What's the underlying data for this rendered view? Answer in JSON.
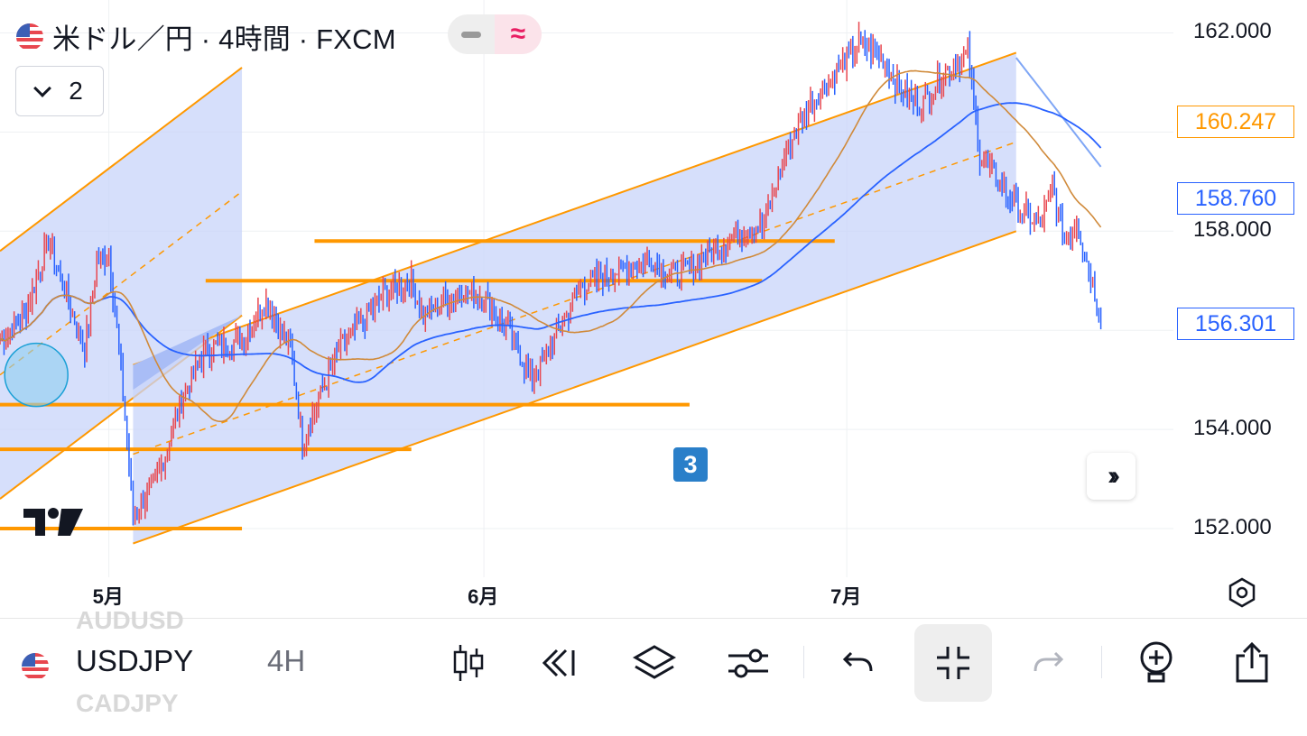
{
  "header": {
    "title": "米ドル／円 · 4時間 · FXCM",
    "collapse_count": "2"
  },
  "badge_label": "3",
  "price_labels": {
    "orange": "160.247",
    "blue_ma": "158.760",
    "last": "156.301"
  },
  "colors": {
    "bull": "#e8474f",
    "bear": "#2962ff",
    "channel_fill": "#c8d4fa",
    "channel_line": "#ff9800",
    "ma_blue": "#2962ff",
    "ma_orange": "#d08a3a",
    "hline": "#ff9800"
  },
  "toolbar": {
    "symbol": "USDJPY",
    "timeframe": "4H",
    "ghost_above": "AUDUSD",
    "ghost_below": "CADJPY"
  },
  "chart_data": {
    "type": "candlestick",
    "title": "米ドル／円 · 4時間 · FXCM",
    "y_axis": {
      "ticks": [
        152.0,
        154.0,
        156.0,
        158.0,
        160.0,
        162.0
      ],
      "tick_labels": [
        "152.000",
        "154.000",
        "156.000",
        "158.000",
        "160.000",
        "162.000"
      ],
      "ylim": [
        151.2,
        162.3
      ]
    },
    "x_axis": {
      "tick_labels": [
        "5月",
        "6月",
        "7月"
      ],
      "tick_dates": [
        "2024-05-01",
        "2024-06-01",
        "2024-07-01"
      ],
      "xlim": [
        "2024-04-22",
        "2024-07-28"
      ]
    },
    "grid": true,
    "price_series": {
      "name": "USDJPY",
      "points": [
        [
          "2024-04-22",
          155.8
        ],
        [
          "2024-04-24",
          156.3
        ],
        [
          "2024-04-26",
          157.8
        ],
        [
          "2024-04-29",
          155.6
        ],
        [
          "2024-04-30",
          157.4
        ],
        [
          "2024-05-01",
          157.5
        ],
        [
          "2024-05-02",
          155.2
        ],
        [
          "2024-05-03",
          152.3
        ],
        [
          "2024-05-05",
          153.0
        ],
        [
          "2024-05-07",
          154.6
        ],
        [
          "2024-05-09",
          155.6
        ],
        [
          "2024-05-12",
          155.8
        ],
        [
          "2024-05-14",
          156.6
        ],
        [
          "2024-05-16",
          155.6
        ],
        [
          "2024-05-17",
          153.8
        ],
        [
          "2024-05-20",
          155.6
        ],
        [
          "2024-05-22",
          156.2
        ],
        [
          "2024-05-24",
          156.8
        ],
        [
          "2024-05-26",
          157.0
        ],
        [
          "2024-05-27",
          156.3
        ],
        [
          "2024-05-30",
          156.8
        ],
        [
          "2024-06-01",
          156.7
        ],
        [
          "2024-06-03",
          156.0
        ],
        [
          "2024-06-05",
          155.0
        ],
        [
          "2024-06-06",
          155.4
        ],
        [
          "2024-06-09",
          156.9
        ],
        [
          "2024-06-11",
          157.1
        ],
        [
          "2024-06-13",
          157.3
        ],
        [
          "2024-06-15",
          157.4
        ],
        [
          "2024-06-17",
          157.1
        ],
        [
          "2024-06-20",
          157.6
        ],
        [
          "2024-06-22",
          158.0
        ],
        [
          "2024-06-24",
          158.1
        ],
        [
          "2024-06-26",
          159.6
        ],
        [
          "2024-06-28",
          160.6
        ],
        [
          "2024-06-30",
          161.2
        ],
        [
          "2024-07-02",
          161.8
        ],
        [
          "2024-07-04",
          161.5
        ],
        [
          "2024-07-05",
          161.0
        ],
        [
          "2024-07-07",
          160.5
        ],
        [
          "2024-07-09",
          161.2
        ],
        [
          "2024-07-11",
          161.6
        ],
        [
          "2024-07-12",
          159.5
        ],
        [
          "2024-07-15",
          158.5
        ],
        [
          "2024-07-17",
          158.1
        ],
        [
          "2024-07-18",
          158.9
        ],
        [
          "2024-07-19",
          157.8
        ],
        [
          "2024-07-20",
          158.2
        ],
        [
          "2024-07-22",
          156.301
        ]
      ]
    },
    "moving_averages": [
      {
        "name": "",
        "color": "#2962ff",
        "last": 158.76
      },
      {
        "name": "",
        "color": "#d08a3a",
        "last": 160.247
      }
    ],
    "horizontal_levels": [
      152.0,
      153.6,
      154.5,
      157.0,
      157.8
    ]
  }
}
